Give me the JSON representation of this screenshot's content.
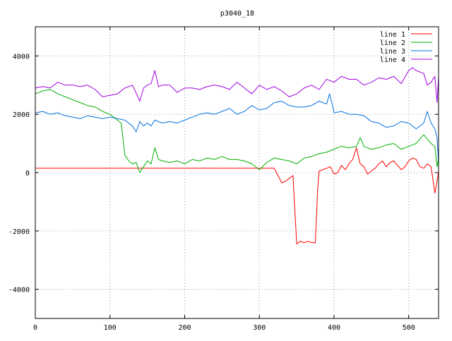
{
  "chart_data": {
    "type": "line",
    "title": "p3040_18",
    "xlabel": "",
    "ylabel": "",
    "xlim": [
      0,
      540
    ],
    "ylim": [
      -5000,
      5000
    ],
    "x_ticks": [
      0,
      100,
      200,
      300,
      400,
      500
    ],
    "y_ticks": [
      -4000,
      -2000,
      0,
      2000,
      4000
    ],
    "grid": true,
    "legend_position": "top-right",
    "series": [
      {
        "name": "line 1",
        "color": "#ff0000",
        "x": [
          0,
          100,
          200,
          300,
          320,
          325,
          330,
          335,
          340,
          345,
          350,
          355,
          360,
          365,
          370,
          375,
          378,
          380,
          385,
          390,
          395,
          400,
          405,
          410,
          415,
          420,
          425,
          430,
          435,
          440,
          445,
          450,
          455,
          460,
          465,
          470,
          475,
          480,
          485,
          490,
          495,
          500,
          505,
          510,
          515,
          520,
          525,
          530,
          535,
          538,
          540
        ],
        "y": [
          150,
          150,
          150,
          150,
          150,
          -100,
          -350,
          -300,
          -200,
          -100,
          -2450,
          -2350,
          -2400,
          -2350,
          -2400,
          -2400,
          -600,
          50,
          100,
          150,
          200,
          -50,
          0,
          250,
          100,
          300,
          450,
          850,
          300,
          200,
          -50,
          50,
          150,
          300,
          400,
          200,
          350,
          400,
          250,
          100,
          200,
          400,
          500,
          450,
          200,
          150,
          300,
          200,
          -700,
          -300,
          50
        ]
      },
      {
        "name": "line 2",
        "color": "#00b000",
        "x": [
          0,
          10,
          20,
          30,
          40,
          50,
          60,
          70,
          80,
          90,
          100,
          110,
          115,
          120,
          125,
          130,
          135,
          140,
          145,
          150,
          155,
          160,
          165,
          170,
          180,
          190,
          200,
          210,
          220,
          230,
          240,
          250,
          260,
          270,
          280,
          290,
          300,
          310,
          320,
          330,
          340,
          350,
          360,
          370,
          380,
          390,
          400,
          410,
          420,
          430,
          435,
          440,
          450,
          460,
          470,
          480,
          490,
          500,
          510,
          520,
          530,
          535,
          538,
          540
        ],
        "y": [
          2700,
          2800,
          2850,
          2700,
          2600,
          2500,
          2400,
          2300,
          2250,
          2100,
          2000,
          1800,
          1700,
          600,
          400,
          300,
          350,
          0,
          200,
          400,
          300,
          850,
          450,
          400,
          350,
          400,
          300,
          450,
          400,
          500,
          450,
          550,
          450,
          450,
          400,
          300,
          100,
          350,
          500,
          450,
          400,
          300,
          500,
          550,
          650,
          700,
          800,
          900,
          850,
          900,
          1200,
          900,
          800,
          850,
          950,
          1000,
          800,
          900,
          1000,
          1300,
          1000,
          900,
          200,
          500
        ]
      },
      {
        "name": "line 3",
        "color": "#0070e0",
        "x": [
          0,
          10,
          20,
          30,
          40,
          50,
          60,
          70,
          80,
          90,
          100,
          110,
          120,
          130,
          135,
          140,
          145,
          150,
          155,
          160,
          170,
          180,
          190,
          200,
          210,
          220,
          230,
          240,
          250,
          260,
          270,
          280,
          290,
          300,
          310,
          320,
          330,
          340,
          350,
          360,
          370,
          380,
          390,
          394,
          398,
          400,
          410,
          420,
          430,
          440,
          450,
          460,
          470,
          480,
          490,
          500,
          510,
          520,
          525,
          530,
          535,
          538,
          540
        ],
        "y": [
          2050,
          2100,
          2000,
          2050,
          1950,
          1900,
          1850,
          1950,
          1900,
          1850,
          1900,
          1850,
          1800,
          1600,
          1400,
          1750,
          1600,
          1700,
          1600,
          1800,
          1700,
          1750,
          1700,
          1800,
          1900,
          2000,
          2050,
          2000,
          2100,
          2200,
          2000,
          2100,
          2300,
          2150,
          2200,
          2400,
          2450,
          2300,
          2250,
          2250,
          2300,
          2450,
          2350,
          2700,
          2300,
          2050,
          2100,
          2000,
          2000,
          1950,
          1750,
          1700,
          1550,
          1600,
          1750,
          1700,
          1500,
          1700,
          2100,
          1700,
          1500,
          1200,
          300
        ]
      },
      {
        "name": "line 4",
        "color": "#a000e0",
        "x": [
          0,
          10,
          20,
          30,
          40,
          50,
          60,
          70,
          80,
          90,
          100,
          110,
          120,
          130,
          140,
          145,
          150,
          155,
          160,
          165,
          170,
          180,
          190,
          200,
          210,
          220,
          230,
          240,
          250,
          260,
          270,
          280,
          290,
          300,
          310,
          320,
          330,
          340,
          350,
          360,
          370,
          380,
          390,
          400,
          410,
          420,
          430,
          440,
          450,
          460,
          470,
          480,
          490,
          500,
          505,
          510,
          520,
          525,
          530,
          535,
          538,
          540
        ],
        "y": [
          2900,
          2950,
          2900,
          3100,
          3000,
          3000,
          2950,
          3000,
          2850,
          2600,
          2650,
          2700,
          2900,
          3000,
          2450,
          2900,
          3000,
          3050,
          3500,
          2950,
          3000,
          3000,
          2750,
          2900,
          2900,
          2850,
          2950,
          3000,
          2950,
          2850,
          3100,
          2900,
          2700,
          3000,
          2850,
          2950,
          2800,
          2600,
          2700,
          2900,
          3000,
          2850,
          3200,
          3100,
          3300,
          3200,
          3200,
          3000,
          3100,
          3250,
          3200,
          3300,
          3050,
          3500,
          3600,
          3500,
          3400,
          3000,
          3100,
          3300,
          2400,
          3300
        ]
      }
    ]
  }
}
